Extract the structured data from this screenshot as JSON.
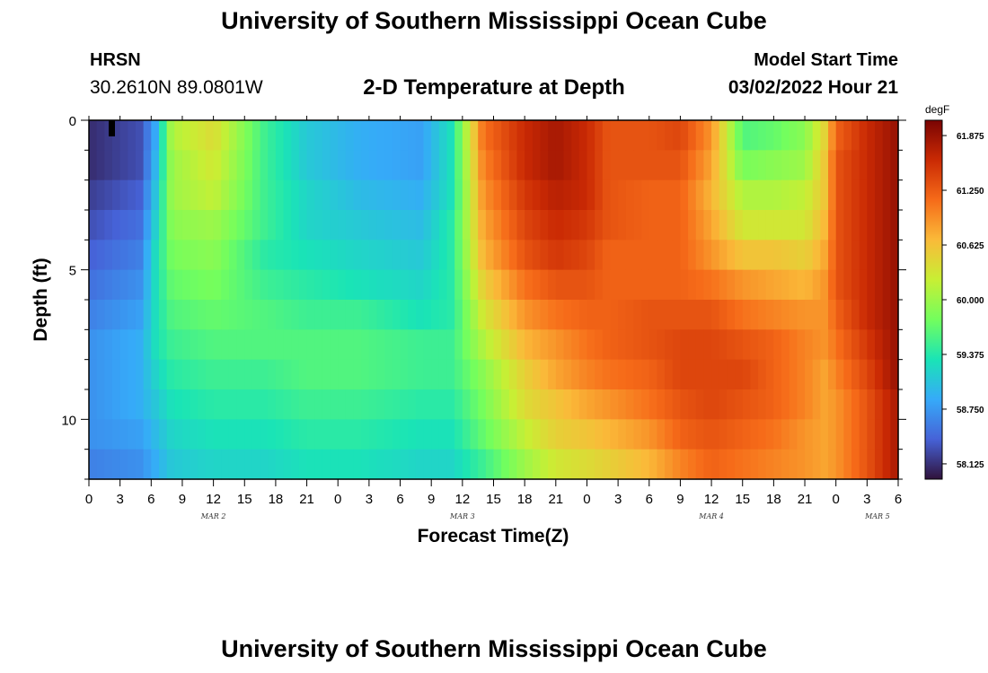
{
  "header": {
    "title": "University of Southern Mississippi Ocean Cube",
    "station": "HRSN",
    "coordinates": "30.2610N  89.0801W",
    "subtitle": "2-D Temperature at Depth",
    "model_start_label": "Model Start Time",
    "model_start_value": "03/02/2022 Hour 21"
  },
  "footer": {
    "title": "University of Southern Mississippi Ocean Cube"
  },
  "chart_data": {
    "type": "heatmap",
    "title": "2-D Temperature at Depth",
    "xlabel": "Forecast Time(Z)",
    "ylabel": "Depth (ft)",
    "x_hours": [
      0,
      78
    ],
    "x_tick_labels": [
      "0",
      "3",
      "6",
      "9",
      "12",
      "15",
      "18",
      "21",
      "0",
      "3",
      "6",
      "9",
      "12",
      "15",
      "18",
      "21",
      "0",
      "3",
      "6",
      "9",
      "12",
      "15",
      "18",
      "21",
      "0",
      "3",
      "6"
    ],
    "x_tick_hours": [
      0,
      3,
      6,
      9,
      12,
      15,
      18,
      21,
      24,
      27,
      30,
      33,
      36,
      39,
      42,
      45,
      48,
      51,
      54,
      57,
      60,
      63,
      66,
      69,
      72,
      75,
      78
    ],
    "date_labels": [
      {
        "label": "MAR 2",
        "hour": 12
      },
      {
        "label": "MAR 3",
        "hour": 36
      },
      {
        "label": "MAR 4",
        "hour": 60
      },
      {
        "label": "MAR 5",
        "hour": 76
      }
    ],
    "ylim": [
      0,
      12
    ],
    "y_tick_labels": [
      "0",
      "5",
      "10"
    ],
    "y_ticks": [
      0,
      5,
      10
    ],
    "depth_levels": [
      0.5,
      1.5,
      2.5,
      3.5,
      4.5,
      5.5,
      6.5,
      7.5,
      8.5,
      9.5,
      10.5,
      11.5
    ],
    "colorbar": {
      "unit": "degF",
      "min": 57.95,
      "max": 62.05,
      "tick_labels": [
        "61.875",
        "61.250",
        "60.625",
        "60.000",
        "59.375",
        "58.750",
        "58.125"
      ],
      "tick_values": [
        61.875,
        61.25,
        60.625,
        60.0,
        59.375,
        58.75,
        58.125
      ],
      "colors": [
        "#30123b",
        "#4662d7",
        "#36aaf9",
        "#1ae4b6",
        "#72fe5e",
        "#c8ef34",
        "#faba39",
        "#f66b19",
        "#ca2a04",
        "#7a0403"
      ]
    },
    "temperature_keyframes": {
      "hours": [
        0,
        5,
        6.5,
        8,
        12,
        17,
        21,
        26,
        32,
        35,
        38,
        42,
        45,
        48,
        50,
        54,
        57,
        60,
        63,
        66,
        69,
        71,
        72,
        75,
        78
      ],
      "rows": [
        [
          58.1,
          58.3,
          58.9,
          60.1,
          60.4,
          59.5,
          59.1,
          58.9,
          58.8,
          59.3,
          61.1,
          61.6,
          61.8,
          61.6,
          61.3,
          61.3,
          61.4,
          60.9,
          59.6,
          59.7,
          59.9,
          60.5,
          61.2,
          61.6,
          61.9
        ],
        [
          58.1,
          58.3,
          59.0,
          60.0,
          60.3,
          59.5,
          59.1,
          58.9,
          58.8,
          59.3,
          61.0,
          61.6,
          61.8,
          61.6,
          61.3,
          61.3,
          61.3,
          60.8,
          59.8,
          59.9,
          60.0,
          60.6,
          61.3,
          61.6,
          61.9
        ],
        [
          58.2,
          58.4,
          59.1,
          60.0,
          60.2,
          59.5,
          59.2,
          59.0,
          58.9,
          59.3,
          60.9,
          61.5,
          61.7,
          61.6,
          61.3,
          61.2,
          61.2,
          60.7,
          60.1,
          60.1,
          60.2,
          60.6,
          61.3,
          61.6,
          61.9
        ],
        [
          58.3,
          58.5,
          59.2,
          59.9,
          60.0,
          59.5,
          59.2,
          59.1,
          59.0,
          59.4,
          60.8,
          61.4,
          61.6,
          61.5,
          61.3,
          61.2,
          61.2,
          60.8,
          60.3,
          60.3,
          60.3,
          60.7,
          61.3,
          61.6,
          61.9
        ],
        [
          58.4,
          58.6,
          59.3,
          59.8,
          59.9,
          59.4,
          59.3,
          59.2,
          59.1,
          59.4,
          60.7,
          61.3,
          61.5,
          61.4,
          61.2,
          61.2,
          61.2,
          60.9,
          60.6,
          60.6,
          60.5,
          60.8,
          61.3,
          61.6,
          61.9
        ],
        [
          58.5,
          58.7,
          59.3,
          59.7,
          59.8,
          59.5,
          59.4,
          59.3,
          59.2,
          59.4,
          60.5,
          61.1,
          61.3,
          61.3,
          61.2,
          61.2,
          61.2,
          61.1,
          60.9,
          60.8,
          60.7,
          60.9,
          61.3,
          61.6,
          61.9
        ],
        [
          58.6,
          58.8,
          59.3,
          59.6,
          59.7,
          59.6,
          59.5,
          59.5,
          59.3,
          59.4,
          60.3,
          60.9,
          61.1,
          61.2,
          61.2,
          61.3,
          61.3,
          61.3,
          61.1,
          61.0,
          60.9,
          60.9,
          61.2,
          61.6,
          61.9
        ],
        [
          58.7,
          58.9,
          59.3,
          59.5,
          59.6,
          59.6,
          59.6,
          59.6,
          59.5,
          59.5,
          60.1,
          60.7,
          60.9,
          61.1,
          61.2,
          61.3,
          61.4,
          61.4,
          61.3,
          61.2,
          61.0,
          60.9,
          61.1,
          61.5,
          61.9
        ],
        [
          58.7,
          58.9,
          59.2,
          59.4,
          59.5,
          59.5,
          59.6,
          59.6,
          59.5,
          59.5,
          59.9,
          60.5,
          60.8,
          61.0,
          61.1,
          61.2,
          61.4,
          61.4,
          61.4,
          61.2,
          61.0,
          60.8,
          61.0,
          61.4,
          61.9
        ],
        [
          58.7,
          58.9,
          59.1,
          59.3,
          59.4,
          59.4,
          59.5,
          59.5,
          59.4,
          59.4,
          59.8,
          60.4,
          60.6,
          60.8,
          60.9,
          61.1,
          61.3,
          61.4,
          61.3,
          61.2,
          61.0,
          60.8,
          60.9,
          61.3,
          61.8
        ],
        [
          58.7,
          58.8,
          59.0,
          59.2,
          59.3,
          59.3,
          59.4,
          59.4,
          59.3,
          59.3,
          59.7,
          60.2,
          60.5,
          60.6,
          60.7,
          60.9,
          61.2,
          61.3,
          61.2,
          61.1,
          60.9,
          60.8,
          60.9,
          61.3,
          61.8
        ],
        [
          58.6,
          58.7,
          58.9,
          59.1,
          59.2,
          59.2,
          59.3,
          59.3,
          59.2,
          59.2,
          59.5,
          60.0,
          60.3,
          60.4,
          60.5,
          60.7,
          61.0,
          61.2,
          61.1,
          61.0,
          60.9,
          60.8,
          60.9,
          61.3,
          61.8
        ]
      ]
    }
  }
}
